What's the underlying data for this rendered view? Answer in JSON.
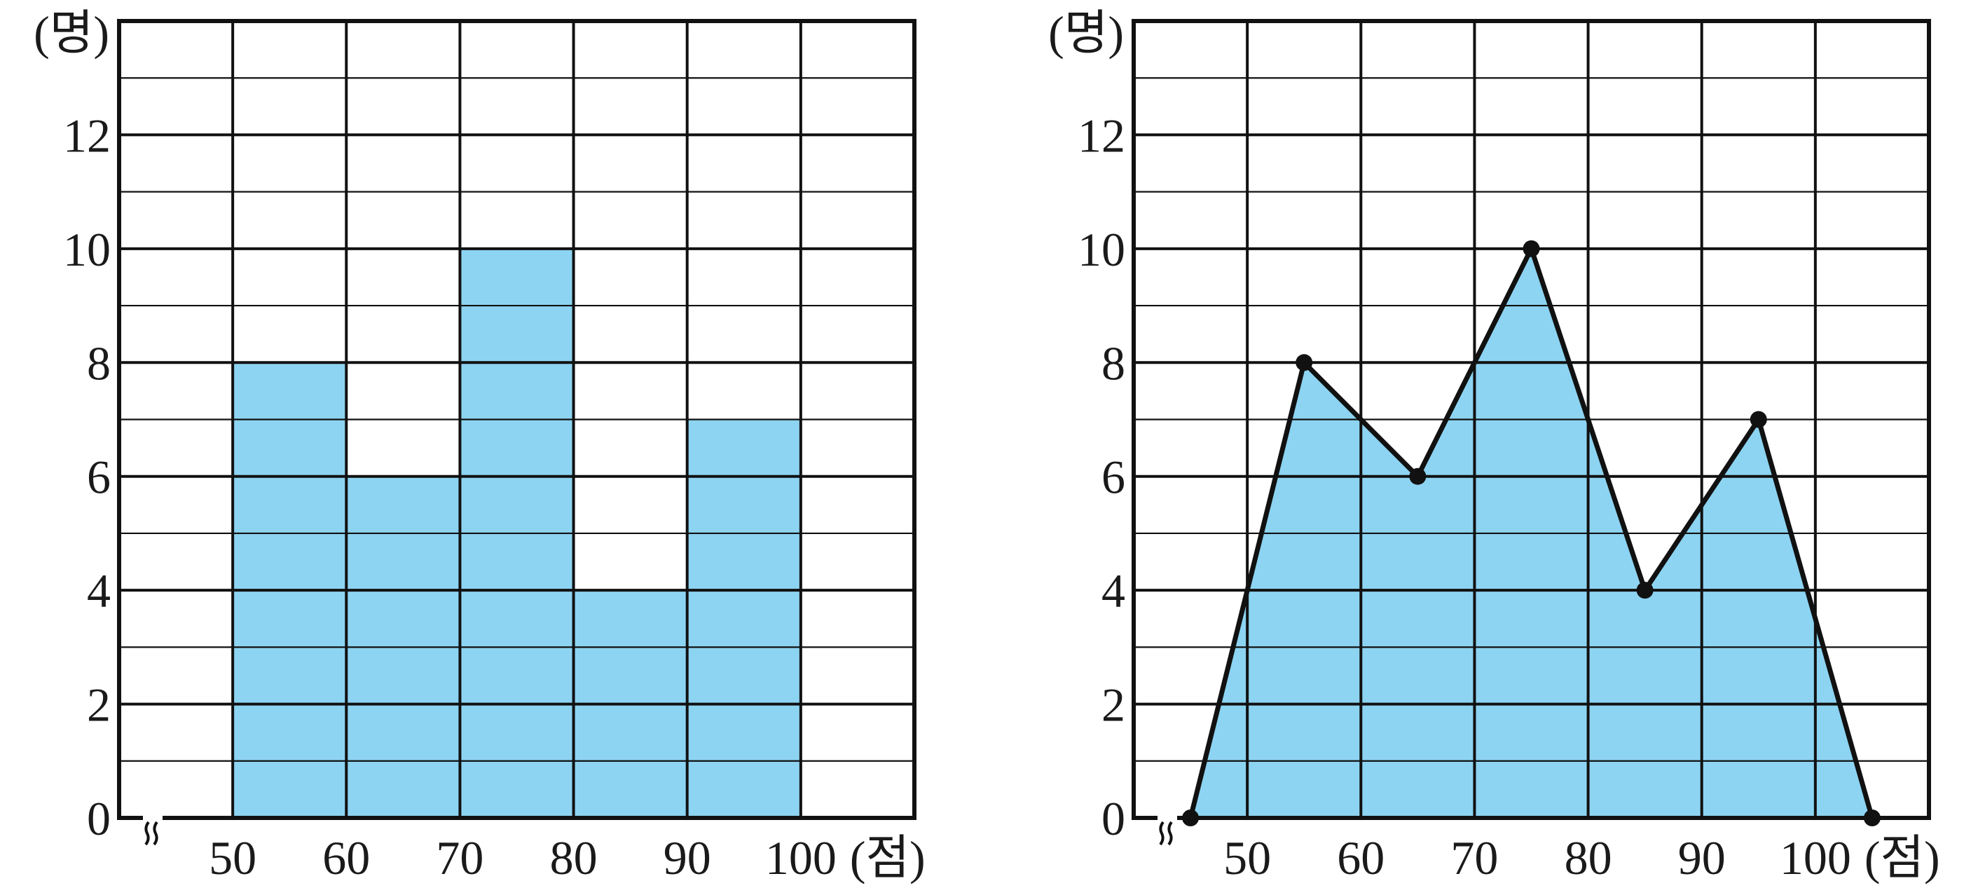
{
  "chart_data": [
    {
      "type": "bar",
      "variant": "histogram",
      "y_unit": "(명)",
      "x_unit": "(점)",
      "bins": [
        {
          "from": 50,
          "to": 60,
          "value": 8
        },
        {
          "from": 60,
          "to": 70,
          "value": 6
        },
        {
          "from": 70,
          "to": 80,
          "value": 10
        },
        {
          "from": 80,
          "to": 90,
          "value": 4
        },
        {
          "from": 90,
          "to": 100,
          "value": 7
        }
      ],
      "x_ticks": [
        "50",
        "60",
        "70",
        "80",
        "90",
        "100"
      ],
      "y_ticks": [
        "0",
        "2",
        "4",
        "6",
        "8",
        "10",
        "12"
      ],
      "xlim": [
        40,
        110
      ],
      "ylim": [
        0,
        14
      ],
      "grid": true,
      "axis_break": true,
      "fill_color": "#8dd4f2"
    },
    {
      "type": "line",
      "variant": "frequency-polygon",
      "y_unit": "(명)",
      "x_unit": "(점)",
      "x": [
        45,
        55,
        65,
        75,
        85,
        95,
        105
      ],
      "y": [
        0,
        8,
        6,
        10,
        4,
        7,
        0
      ],
      "x_ticks": [
        "50",
        "60",
        "70",
        "80",
        "90",
        "100"
      ],
      "y_ticks": [
        "0",
        "2",
        "4",
        "6",
        "8",
        "10",
        "12"
      ],
      "xlim": [
        40,
        110
      ],
      "ylim": [
        0,
        14
      ],
      "grid": true,
      "axis_break": true,
      "fill_color": "#8dd4f2"
    }
  ]
}
